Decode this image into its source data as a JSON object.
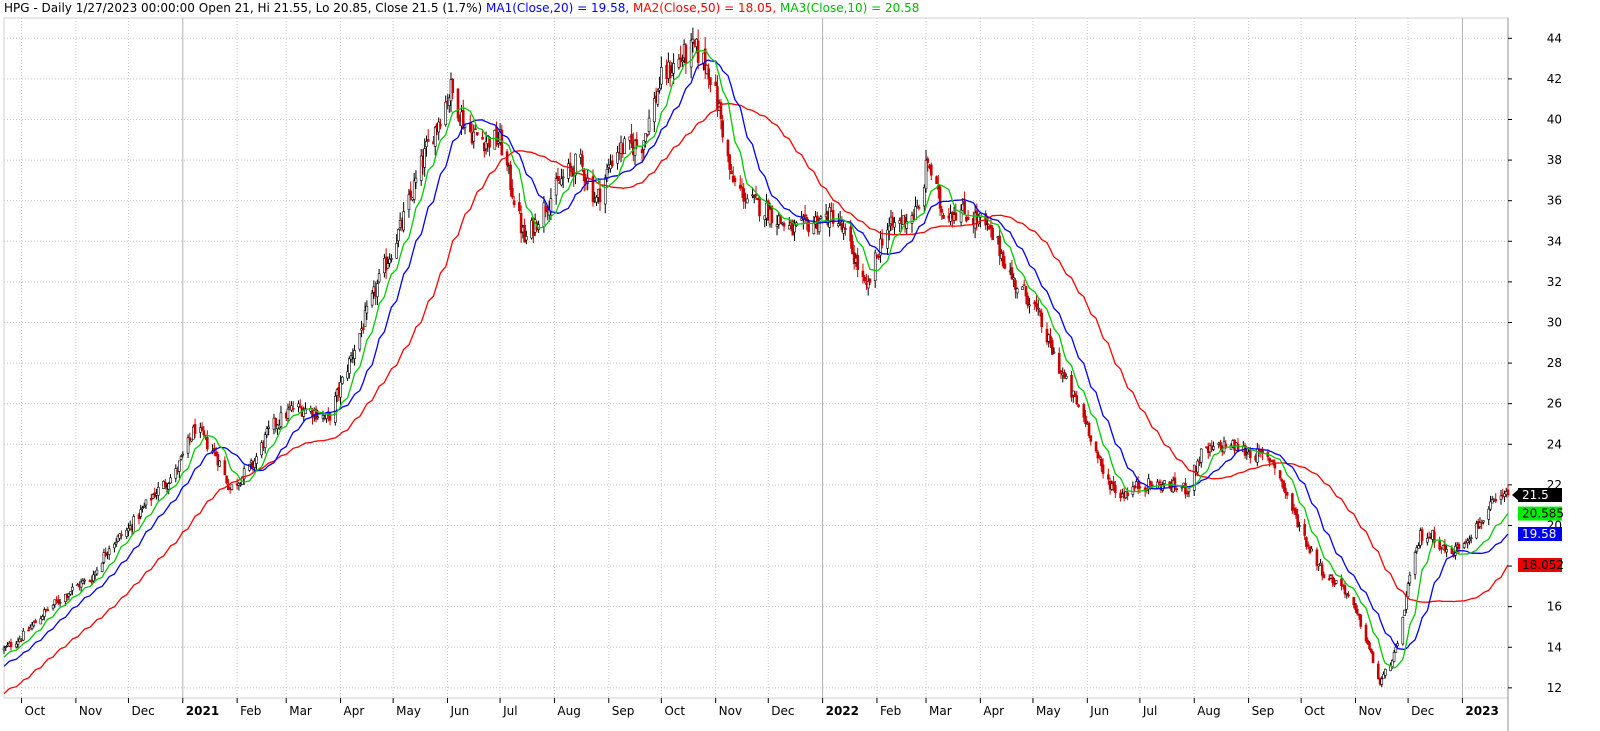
{
  "header": {
    "symbol": "HPG",
    "info": " - Daily 1/27/2023 00:00:00 Open 21, Hi 21.55, Lo 20.85, Close 21.5 (1.7%)",
    "ma1": "MA1(Close,20) = 19.58,",
    "ma2": "MA2(Close,50) = 18.05,",
    "ma3": "MA3(Close,10) = 20.58"
  },
  "colors": {
    "ma1": "#0000ff",
    "ma2": "#ff0000",
    "ma3": "#00cc00",
    "up": "#000000",
    "down": "#cc0000",
    "grid": "#c8c8c8",
    "last_price": "#000000",
    "tag_ma3": "#00ee00",
    "tag_ma1": "#0000ee",
    "tag_ma2": "#ee0000"
  },
  "chart_data": {
    "type": "candlestick",
    "title": "HPG - Daily 1/27/2023 00:00:00 Open 21, Hi 21.55, Lo 20.85, Close 21.5 (1.7%)",
    "y_ticks": [
      "44",
      "42",
      "40",
      "38",
      "36",
      "34",
      "32",
      "30",
      "28",
      "26",
      "24",
      "22",
      "20",
      "18",
      "16",
      "14",
      "12"
    ],
    "y_range": [
      11.5,
      45
    ],
    "grid": true,
    "x_range": [
      "2020-09-21",
      "2023-01-27"
    ],
    "month_ticks": [
      {
        "date": "2020-10-01",
        "label": "Oct",
        "bold": false
      },
      {
        "date": "2020-11-01",
        "label": "Nov",
        "bold": false
      },
      {
        "date": "2020-12-01",
        "label": "Dec",
        "bold": false
      },
      {
        "date": "2021-01-01",
        "label": "2021",
        "bold": true
      },
      {
        "date": "2021-02-01",
        "label": "Feb",
        "bold": false
      },
      {
        "date": "2021-03-01",
        "label": "Mar",
        "bold": false
      },
      {
        "date": "2021-04-01",
        "label": "Apr",
        "bold": false
      },
      {
        "date": "2021-05-01",
        "label": "May",
        "bold": false
      },
      {
        "date": "2021-06-01",
        "label": "Jun",
        "bold": false
      },
      {
        "date": "2021-07-01",
        "label": "Jul",
        "bold": false
      },
      {
        "date": "2021-08-01",
        "label": "Aug",
        "bold": false
      },
      {
        "date": "2021-09-01",
        "label": "Sep",
        "bold": false
      },
      {
        "date": "2021-10-01",
        "label": "Oct",
        "bold": false
      },
      {
        "date": "2021-11-01",
        "label": "Nov",
        "bold": false
      },
      {
        "date": "2021-12-01",
        "label": "Dec",
        "bold": false
      },
      {
        "date": "2022-01-01",
        "label": "2022",
        "bold": true
      },
      {
        "date": "2022-02-01",
        "label": "Feb",
        "bold": false
      },
      {
        "date": "2022-03-01",
        "label": "Mar",
        "bold": false
      },
      {
        "date": "2022-04-01",
        "label": "Apr",
        "bold": false
      },
      {
        "date": "2022-05-01",
        "label": "May",
        "bold": false
      },
      {
        "date": "2022-06-01",
        "label": "Jun",
        "bold": false
      },
      {
        "date": "2022-07-01",
        "label": "Jul",
        "bold": false
      },
      {
        "date": "2022-08-01",
        "label": "Aug",
        "bold": false
      },
      {
        "date": "2022-09-01",
        "label": "Sep",
        "bold": false
      },
      {
        "date": "2022-10-01",
        "label": "Oct",
        "bold": false
      },
      {
        "date": "2022-11-01",
        "label": "Nov",
        "bold": false
      },
      {
        "date": "2022-12-01",
        "label": "Dec",
        "bold": false
      },
      {
        "date": "2023-01-01",
        "label": "2023",
        "bold": true
      }
    ],
    "close_path": [
      [
        "2020-09-21",
        13.9
      ],
      [
        "2020-10-01",
        14.5
      ],
      [
        "2020-10-15",
        15.8
      ],
      [
        "2020-11-01",
        17.0
      ],
      [
        "2020-11-10",
        17.4
      ],
      [
        "2020-11-20",
        19.0
      ],
      [
        "2020-12-01",
        19.8
      ],
      [
        "2020-12-15",
        21.5
      ],
      [
        "2020-12-28",
        22.6
      ],
      [
        "2021-01-08",
        24.8
      ],
      [
        "2021-01-20",
        23.5
      ],
      [
        "2021-01-28",
        21.8
      ],
      [
        "2021-02-10",
        23.0
      ],
      [
        "2021-02-20",
        24.8
      ],
      [
        "2021-03-05",
        25.8
      ],
      [
        "2021-03-15",
        25.7
      ],
      [
        "2021-03-25",
        25.2
      ],
      [
        "2021-04-10",
        29.0
      ],
      [
        "2021-04-25",
        32.5
      ],
      [
        "2021-05-05",
        34.6
      ],
      [
        "2021-05-20",
        38.5
      ],
      [
        "2021-06-03",
        41.5
      ],
      [
        "2021-06-12",
        39.5
      ],
      [
        "2021-06-22",
        39.0
      ],
      [
        "2021-07-01",
        39.0
      ],
      [
        "2021-07-08",
        36.5
      ],
      [
        "2021-07-15",
        34.0
      ],
      [
        "2021-07-25",
        35.5
      ],
      [
        "2021-08-05",
        37.0
      ],
      [
        "2021-08-15",
        38.0
      ],
      [
        "2021-08-25",
        36.0
      ],
      [
        "2021-09-05",
        38.5
      ],
      [
        "2021-09-20",
        38.8
      ],
      [
        "2021-10-01",
        42.0
      ],
      [
        "2021-10-12",
        43.0
      ],
      [
        "2021-10-20",
        43.5
      ],
      [
        "2021-10-28",
        42.5
      ],
      [
        "2021-11-03",
        40.5
      ],
      [
        "2021-11-10",
        37.0
      ],
      [
        "2021-11-20",
        36.0
      ],
      [
        "2021-12-01",
        35.5
      ],
      [
        "2021-12-15",
        34.5
      ],
      [
        "2021-12-28",
        35.0
      ],
      [
        "2022-01-08",
        35.3
      ],
      [
        "2022-01-18",
        33.5
      ],
      [
        "2022-01-26",
        31.5
      ],
      [
        "2022-02-05",
        34.5
      ],
      [
        "2022-02-15",
        35.0
      ],
      [
        "2022-02-25",
        35.5
      ],
      [
        "2022-03-02",
        38.0
      ],
      [
        "2022-03-10",
        35.5
      ],
      [
        "2022-03-20",
        35.5
      ],
      [
        "2022-04-01",
        35.0
      ],
      [
        "2022-04-10",
        34.0
      ],
      [
        "2022-04-20",
        32.0
      ],
      [
        "2022-05-01",
        31.0
      ],
      [
        "2022-05-10",
        29.0
      ],
      [
        "2022-05-20",
        27.0
      ],
      [
        "2022-06-01",
        25.0
      ],
      [
        "2022-06-10",
        22.5
      ],
      [
        "2022-06-20",
        21.5
      ],
      [
        "2022-07-01",
        22.0
      ],
      [
        "2022-07-15",
        22.0
      ],
      [
        "2022-07-28",
        21.8
      ],
      [
        "2022-08-05",
        23.5
      ],
      [
        "2022-08-20",
        24.0
      ],
      [
        "2022-09-05",
        23.5
      ],
      [
        "2022-09-15",
        23.2
      ],
      [
        "2022-09-25",
        21.0
      ],
      [
        "2022-10-05",
        19.0
      ],
      [
        "2022-10-15",
        17.5
      ],
      [
        "2022-10-25",
        17.0
      ],
      [
        "2022-11-05",
        15.0
      ],
      [
        "2022-11-15",
        12.2
      ],
      [
        "2022-11-25",
        14.0
      ],
      [
        "2022-12-01",
        17.0
      ],
      [
        "2022-12-08",
        19.5
      ],
      [
        "2022-12-15",
        19.5
      ],
      [
        "2022-12-25",
        18.5
      ],
      [
        "2022-12-30",
        19.0
      ],
      [
        "2023-01-10",
        20.0
      ],
      [
        "2023-01-18",
        21.0
      ],
      [
        "2023-01-27",
        21.5
      ]
    ],
    "last_close": 21.5,
    "last_ma": {
      "ma1": 19.58,
      "ma2": 18.052,
      "ma3": 20.585
    },
    "price_tags": {
      "close": "21.5",
      "ma3": "20.585",
      "ma1": "19.58",
      "ma2": "18.052"
    },
    "series": [
      {
        "name": "MA1(Close,20)",
        "period": 20
      },
      {
        "name": "MA2(Close,50)",
        "period": 50
      },
      {
        "name": "MA3(Close,10)",
        "period": 10
      }
    ]
  }
}
